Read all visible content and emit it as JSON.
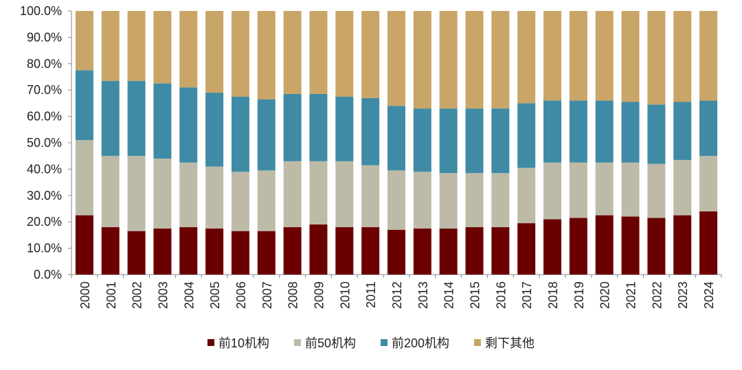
{
  "chart_data": {
    "type": "bar",
    "stacked": true,
    "categories": [
      "2000",
      "2001",
      "2002",
      "2003",
      "2004",
      "2005",
      "2006",
      "2007",
      "2008",
      "2009",
      "2010",
      "2011",
      "2012",
      "2013",
      "2014",
      "2015",
      "2016",
      "2017",
      "2018",
      "2019",
      "2020",
      "2021",
      "2022",
      "2023",
      "2024"
    ],
    "series": [
      {
        "name": "前10机构",
        "color": "#6b0000",
        "values": [
          22.5,
          18.0,
          16.5,
          17.5,
          18.0,
          17.5,
          16.5,
          16.5,
          18.0,
          19.0,
          18.0,
          18.0,
          17.0,
          17.5,
          17.5,
          18.0,
          18.0,
          19.5,
          21.0,
          21.5,
          22.5,
          22.0,
          21.5,
          22.5,
          24.0
        ]
      },
      {
        "name": "前50机构",
        "color": "#bdbaa8",
        "values": [
          28.5,
          27.0,
          28.5,
          26.5,
          24.5,
          23.5,
          22.5,
          23.0,
          25.0,
          24.0,
          25.0,
          23.5,
          22.5,
          21.5,
          21.0,
          20.5,
          20.5,
          21.0,
          21.5,
          21.0,
          20.0,
          20.5,
          20.5,
          21.0,
          21.0
        ]
      },
      {
        "name": "前200机构",
        "color": "#3f8ba5",
        "values": [
          26.5,
          28.5,
          28.5,
          28.5,
          28.5,
          28.0,
          28.5,
          27.0,
          25.5,
          25.5,
          24.5,
          25.5,
          24.5,
          24.0,
          24.5,
          24.5,
          24.5,
          24.5,
          23.5,
          23.5,
          23.5,
          23.0,
          22.5,
          22.0,
          21.0
        ]
      },
      {
        "name": "剩下其他",
        "color": "#c9a567",
        "values": [
          22.5,
          26.5,
          26.5,
          27.5,
          29.0,
          31.0,
          32.5,
          33.5,
          31.5,
          31.5,
          32.5,
          33.0,
          36.0,
          37.0,
          37.0,
          37.0,
          37.0,
          35.0,
          34.0,
          34.0,
          34.0,
          34.5,
          35.5,
          34.5,
          34.0
        ]
      }
    ],
    "y_ticks": [
      "0.0%",
      "10.0%",
      "20.0%",
      "30.0%",
      "40.0%",
      "50.0%",
      "60.0%",
      "70.0%",
      "80.0%",
      "90.0%",
      "100.0%"
    ],
    "ylim": [
      0,
      100
    ],
    "grid": false,
    "legend_position": "bottom"
  }
}
